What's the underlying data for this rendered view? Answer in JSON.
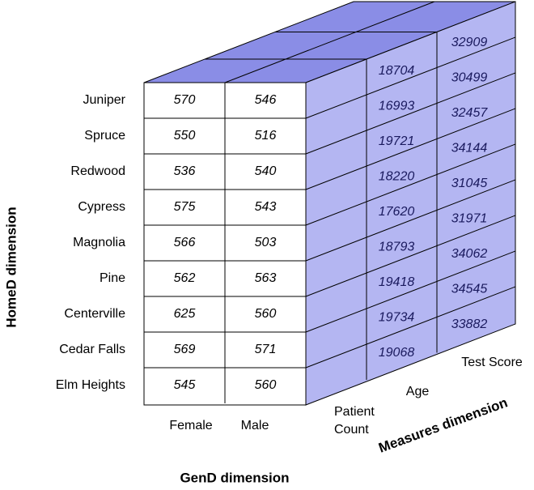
{
  "row_dimension": "HomeD dimension",
  "column_dimension": "GenD dimension",
  "measure_dimension": "Measures dimension",
  "columns": [
    "Female",
    "Male"
  ],
  "measures": [
    "Patient Count",
    "Age",
    "Test Score"
  ],
  "rows": [
    {
      "label": "Juniper",
      "values": [
        570,
        546
      ],
      "age": 18704,
      "test_score": 32909
    },
    {
      "label": "Spruce",
      "values": [
        550,
        516
      ],
      "age": 16993,
      "test_score": 30499
    },
    {
      "label": "Redwood",
      "values": [
        536,
        540
      ],
      "age": 19721,
      "test_score": 32457
    },
    {
      "label": "Cypress",
      "values": [
        575,
        543
      ],
      "age": 18220,
      "test_score": 34144
    },
    {
      "label": "Magnolia",
      "values": [
        566,
        503
      ],
      "age": 17620,
      "test_score": 31045
    },
    {
      "label": "Pine",
      "values": [
        562,
        563
      ],
      "age": 18793,
      "test_score": 31971
    },
    {
      "label": "Centerville",
      "values": [
        625,
        560
      ],
      "age": 19418,
      "test_score": 34062
    },
    {
      "label": "Cedar Falls",
      "values": [
        569,
        571
      ],
      "age": 19734,
      "test_score": 34545
    },
    {
      "label": "Elm Heights",
      "values": [
        545,
        560
      ],
      "age": 19068,
      "test_score": 33882
    }
  ]
}
